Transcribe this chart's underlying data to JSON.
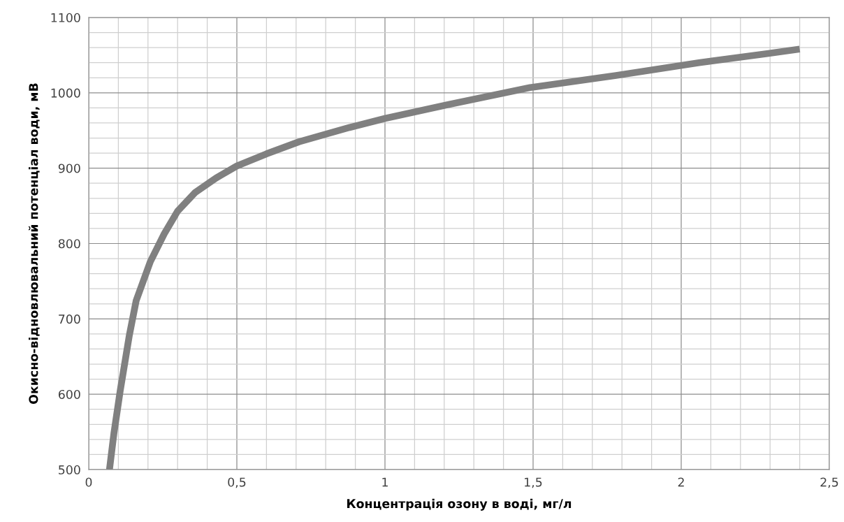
{
  "chart_data": {
    "type": "line",
    "xlabel": "Концентрація озону в воді, мг/л",
    "ylabel": "Окисно-відновлювальний потенціал води, мВ",
    "series": [
      {
        "color": "#808080",
        "x": [
          0.07,
          0.085,
          0.106,
          0.137,
          0.16,
          0.208,
          0.255,
          0.3,
          0.36,
          0.43,
          0.5,
          0.6,
          0.71,
          0.88,
          1.0,
          1.21,
          1.49,
          1.78,
          2.06,
          2.29,
          2.4
        ],
        "values": [
          500,
          548,
          604,
          678,
          724,
          776,
          813,
          843,
          868,
          887,
          903,
          919,
          935,
          954,
          966,
          984,
          1007,
          1023,
          1040,
          1052,
          1058
        ]
      }
    ],
    "xlim": [
      0,
      2.5
    ],
    "xticks": [
      0,
      {
        "value": 0.5,
        "label": "0,5"
      },
      1,
      {
        "value": 1.5,
        "label": "1,5"
      },
      2,
      {
        "value": 2.5,
        "label": "2,5"
      }
    ],
    "ylim": [
      500,
      1100
    ],
    "yticks": [
      500,
      600,
      700,
      800,
      900,
      1000,
      1100
    ],
    "grid": true,
    "marker": "none",
    "line_style": "solid"
  }
}
